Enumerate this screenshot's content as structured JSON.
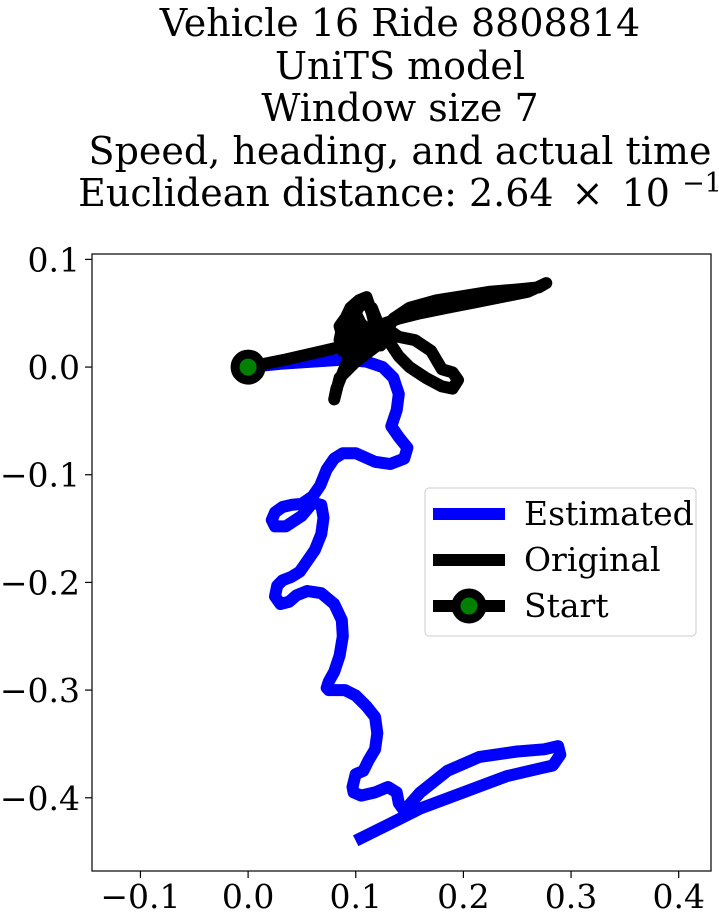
{
  "chart_data": {
    "type": "line",
    "title_lines": [
      "Vehicle 16 Ride 8808814",
      "UniTS model",
      "Window size 7",
      "Speed, heading, and actual time"
    ],
    "title_distance_prefix": "Euclidean distance: 2.64",
    "title_distance_times": "×",
    "title_distance_base": "10",
    "title_distance_exp": "−1",
    "xlim": [
      -0.145,
      0.43
    ],
    "ylim": [
      -0.468,
      0.105
    ],
    "xticks": [
      -0.1,
      0.0,
      0.1,
      0.2,
      0.3,
      0.4
    ],
    "xtick_labels": [
      "−0.1",
      "0.0",
      "0.1",
      "0.2",
      "0.3",
      "0.4"
    ],
    "yticks": [
      0.1,
      0.0,
      -0.1,
      -0.2,
      -0.3,
      -0.4
    ],
    "ytick_labels": [
      "0.1",
      "0.0",
      "−0.1",
      "−0.2",
      "−0.3",
      "−0.4"
    ],
    "grid": false,
    "legend_position": "center-right",
    "series": [
      {
        "name": "Estimated",
        "color": "#0000ff",
        "x": [
          0.0,
          0.03,
          0.06,
          0.09,
          0.11,
          0.125,
          0.135,
          0.14,
          0.138,
          0.133,
          0.14,
          0.148,
          0.145,
          0.132,
          0.118,
          0.1,
          0.088,
          0.08,
          0.073,
          0.067,
          0.06,
          0.05,
          0.04,
          0.032,
          0.025,
          0.022,
          0.025,
          0.035,
          0.05,
          0.06,
          0.068,
          0.07,
          0.068,
          0.062,
          0.055,
          0.048,
          0.04,
          0.032,
          0.027,
          0.025,
          0.03,
          0.038,
          0.045,
          0.055,
          0.068,
          0.08,
          0.087,
          0.088,
          0.085,
          0.08,
          0.075,
          0.073,
          0.075,
          0.08,
          0.09,
          0.1,
          0.11,
          0.118,
          0.12,
          0.118,
          0.112,
          0.107,
          0.1,
          0.097,
          0.098,
          0.105,
          0.118,
          0.13,
          0.138,
          0.14,
          0.145,
          0.16,
          0.185,
          0.215,
          0.25,
          0.275,
          0.288,
          0.29,
          0.283,
          0.27,
          0.24,
          0.2,
          0.16,
          0.13,
          0.1
        ],
        "y": [
          0.0,
          0.003,
          0.005,
          0.007,
          0.005,
          0.0,
          -0.01,
          -0.025,
          -0.04,
          -0.055,
          -0.065,
          -0.075,
          -0.085,
          -0.09,
          -0.088,
          -0.08,
          -0.08,
          -0.085,
          -0.095,
          -0.11,
          -0.12,
          -0.127,
          -0.128,
          -0.13,
          -0.135,
          -0.142,
          -0.148,
          -0.148,
          -0.138,
          -0.126,
          -0.128,
          -0.14,
          -0.155,
          -0.17,
          -0.18,
          -0.19,
          -0.195,
          -0.198,
          -0.203,
          -0.213,
          -0.22,
          -0.218,
          -0.212,
          -0.208,
          -0.21,
          -0.22,
          -0.235,
          -0.25,
          -0.268,
          -0.283,
          -0.292,
          -0.298,
          -0.3,
          -0.3,
          -0.3,
          -0.305,
          -0.315,
          -0.325,
          -0.34,
          -0.355,
          -0.365,
          -0.375,
          -0.378,
          -0.39,
          -0.395,
          -0.398,
          -0.395,
          -0.39,
          -0.395,
          -0.405,
          -0.412,
          -0.395,
          -0.375,
          -0.362,
          -0.357,
          -0.355,
          -0.352,
          -0.36,
          -0.37,
          -0.373,
          -0.38,
          -0.395,
          -0.41,
          -0.425,
          -0.44
        ]
      },
      {
        "name": "Original",
        "color": "#000000",
        "x": [
          0.0,
          0.035,
          0.07,
          0.1,
          0.12,
          0.13,
          0.12,
          0.1,
          0.085,
          0.08,
          0.082,
          0.09,
          0.098,
          0.1,
          0.095,
          0.088,
          0.085,
          0.088,
          0.095,
          0.103,
          0.11,
          0.115,
          0.12,
          0.123,
          0.125,
          0.115,
          0.1,
          0.09,
          0.085,
          0.09,
          0.1,
          0.11,
          0.118,
          0.12,
          0.115,
          0.105,
          0.1,
          0.105,
          0.118,
          0.13,
          0.14,
          0.15,
          0.165,
          0.18,
          0.19,
          0.195,
          0.19,
          0.18,
          0.17,
          0.155,
          0.14,
          0.13,
          0.135,
          0.15,
          0.175,
          0.2,
          0.225,
          0.25,
          0.27,
          0.277,
          0.26,
          0.235,
          0.21,
          0.185,
          0.16,
          0.14,
          0.125,
          0.12
        ],
        "y": [
          0.0,
          0.007,
          0.015,
          0.022,
          0.028,
          0.035,
          0.02,
          0.005,
          -0.01,
          -0.03,
          -0.02,
          0.0,
          0.02,
          0.04,
          0.03,
          0.015,
          0.025,
          0.04,
          0.055,
          0.062,
          0.065,
          0.05,
          0.03,
          0.02,
          0.03,
          0.025,
          0.01,
          0.02,
          0.038,
          0.045,
          0.04,
          0.03,
          0.03,
          0.042,
          0.055,
          0.06,
          0.05,
          0.04,
          0.03,
          0.025,
          0.01,
          0.0,
          -0.01,
          -0.018,
          -0.02,
          -0.012,
          -0.005,
          -0.002,
          0.015,
          0.025,
          0.028,
          0.035,
          0.045,
          0.055,
          0.062,
          0.066,
          0.07,
          0.072,
          0.074,
          0.078,
          0.07,
          0.065,
          0.06,
          0.055,
          0.05,
          0.045,
          0.04,
          0.035
        ]
      }
    ],
    "start_point": {
      "name": "Start",
      "x": 0.0,
      "y": 0.0,
      "color": "#008000",
      "edge_color": "#000000"
    }
  },
  "legend": {
    "estimated_label": "Estimated",
    "original_label": "Original",
    "start_label": "Start"
  }
}
